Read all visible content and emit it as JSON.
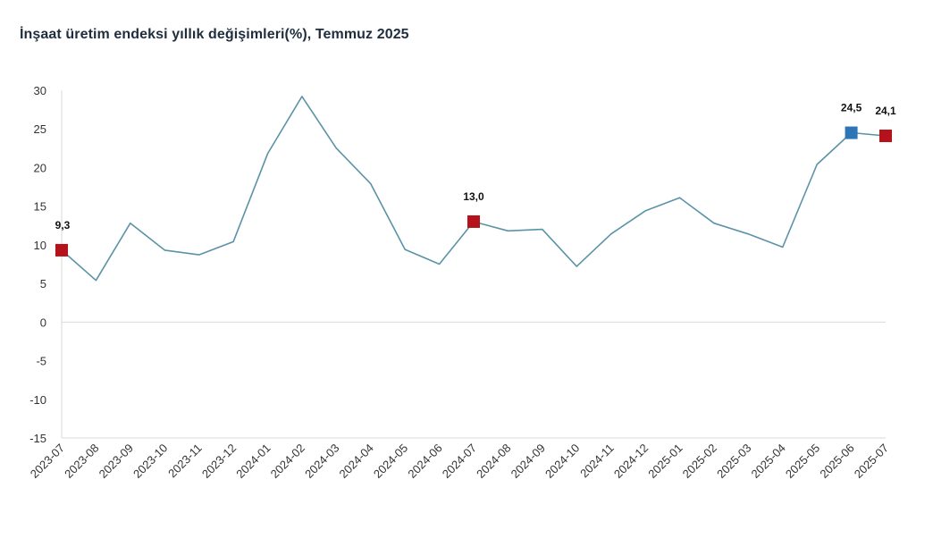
{
  "title": "İnşaat üretim endeksi yıllık değişimleri(%), Temmuz 2025",
  "chart_data": {
    "type": "line",
    "title": "İnşaat üretim endeksi yıllık değişimleri(%), Temmuz 2025",
    "xlabel": "",
    "ylabel": "",
    "ylim": [
      -15,
      30
    ],
    "yticks": [
      "30",
      "25",
      "20",
      "15",
      "10",
      "5",
      "0",
      "-5",
      "-10",
      "-15"
    ],
    "grid": "zero-line only",
    "legend": "none",
    "line_color": "#5b93a6",
    "categories": [
      "2023-07",
      "2023-08",
      "2023-09",
      "2023-10",
      "2023-11",
      "2023-12",
      "2024-01",
      "2024-02",
      "2024-03",
      "2024-04",
      "2024-05",
      "2024-06",
      "2024-07",
      "2024-08",
      "2024-09",
      "2024-10",
      "2024-11",
      "2024-12",
      "2025-01",
      "2025-02",
      "2025-03",
      "2025-04",
      "2025-05",
      "2025-06",
      "2025-07"
    ],
    "series": [
      {
        "values": [
          9.3,
          5.4,
          12.8,
          9.3,
          8.7,
          10.4,
          21.8,
          29.2,
          22.5,
          17.9,
          9.4,
          7.5,
          13.0,
          11.8,
          12.0,
          7.2,
          11.4,
          14.4,
          16.1,
          12.8,
          11.4,
          9.7,
          20.4,
          24.5,
          24.1
        ]
      }
    ],
    "highlighted_points": [
      {
        "category": "2023-07",
        "value": 9.3,
        "label": "9,3",
        "color": "#b5121b"
      },
      {
        "category": "2024-07",
        "value": 13.0,
        "label": "13,0",
        "color": "#b5121b"
      },
      {
        "category": "2025-06",
        "value": 24.5,
        "label": "24,5",
        "color": "#2e75b6"
      },
      {
        "category": "2025-07",
        "value": 24.1,
        "label": "24,1",
        "color": "#b5121b"
      }
    ]
  }
}
